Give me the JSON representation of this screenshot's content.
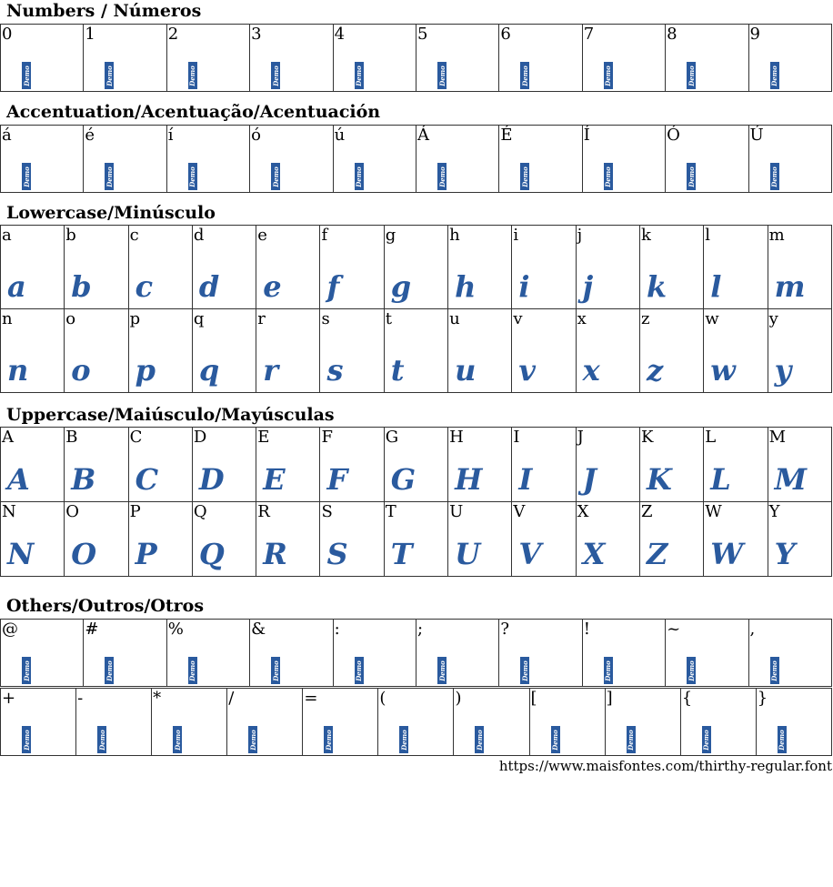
{
  "sections": {
    "numbers": {
      "title": "Numbers / Números",
      "chars": [
        "0",
        "1",
        "2",
        "3",
        "4",
        "5",
        "6",
        "7",
        "8",
        "9"
      ]
    },
    "accents": {
      "title": "Accentuation/Acentuação/Acentuación",
      "chars": [
        "á",
        "é",
        "í",
        "ó",
        "ú",
        "Á",
        "É",
        "Í",
        "Ó",
        "Ú"
      ]
    },
    "lowercase": {
      "title": "Lowercase/Minúsculo",
      "rows": [
        [
          "a",
          "b",
          "c",
          "d",
          "e",
          "f",
          "g",
          "h",
          "i",
          "j",
          "k",
          "l",
          "m"
        ],
        [
          "n",
          "o",
          "p",
          "q",
          "r",
          "s",
          "t",
          "u",
          "v",
          "x",
          "z",
          "w",
          "y"
        ]
      ]
    },
    "uppercase": {
      "title": "Uppercase/Maiúsculo/Mayúsculas",
      "rows": [
        [
          "A",
          "B",
          "C",
          "D",
          "E",
          "F",
          "G",
          "H",
          "I",
          "J",
          "K",
          "L",
          "M"
        ],
        [
          "N",
          "O",
          "P",
          "Q",
          "R",
          "S",
          "T",
          "U",
          "V",
          "X",
          "Z",
          "W",
          "Y"
        ]
      ]
    },
    "others": {
      "title": "Others/Outros/Otros",
      "rows": [
        [
          "@",
          "#",
          "%",
          "&",
          ":",
          ";",
          "?",
          "!",
          "~",
          ","
        ],
        [
          "+",
          "-",
          "*",
          "/",
          "=",
          "(",
          ")",
          "[",
          "]",
          "{",
          "}"
        ]
      ]
    }
  },
  "demo_label": "Demo",
  "glyph_color": "#2a5a9e",
  "footer_url": "https://www.maisfontes.com/thirthy-regular.font"
}
